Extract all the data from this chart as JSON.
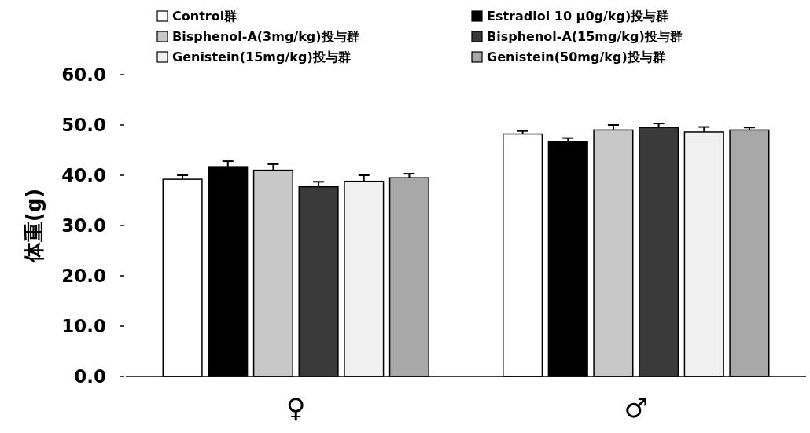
{
  "chart_data": {
    "type": "bar",
    "ylabel": "体重(g)",
    "categories": [
      "♀",
      "♂"
    ],
    "ylim": [
      0,
      60
    ],
    "yticks": [
      {
        "value": 0,
        "label": "0.0"
      },
      {
        "value": 10,
        "label": "10.0"
      },
      {
        "value": 20,
        "label": "20.0"
      },
      {
        "value": 30,
        "label": "30.0"
      },
      {
        "value": 40,
        "label": "40.0"
      },
      {
        "value": 50,
        "label": "50.0"
      },
      {
        "value": 60,
        "label": "60.0"
      }
    ],
    "legend": "top",
    "grid": false,
    "series": [
      {
        "name": "Control群",
        "color": "#ffffff",
        "values": [
          39.2,
          48.2
        ],
        "errors": [
          0.8,
          0.6
        ]
      },
      {
        "name": "Estradiol 10 μ0g/kg)投与群",
        "color": "#000000",
        "values": [
          41.7,
          46.7
        ],
        "errors": [
          1.1,
          0.7
        ]
      },
      {
        "name": "Bisphenol-A(3mg/kg)投与群",
        "color": "#c8c8c8",
        "values": [
          41.0,
          49.0
        ],
        "errors": [
          1.2,
          1.0
        ]
      },
      {
        "name": "Bisphenol-A(15mg/kg)投与群",
        "color": "#3a3a3a",
        "values": [
          37.7,
          49.5
        ],
        "errors": [
          1.0,
          0.8
        ]
      },
      {
        "name": "Genistein(15mg/kg)投与群",
        "color": "#f0f0f0",
        "values": [
          38.8,
          48.6
        ],
        "errors": [
          1.2,
          1.0
        ]
      },
      {
        "name": "Genistein(50mg/kg)投与群",
        "color": "#a8a8a8",
        "values": [
          39.5,
          49.0
        ],
        "errors": [
          0.8,
          0.5
        ]
      }
    ]
  }
}
